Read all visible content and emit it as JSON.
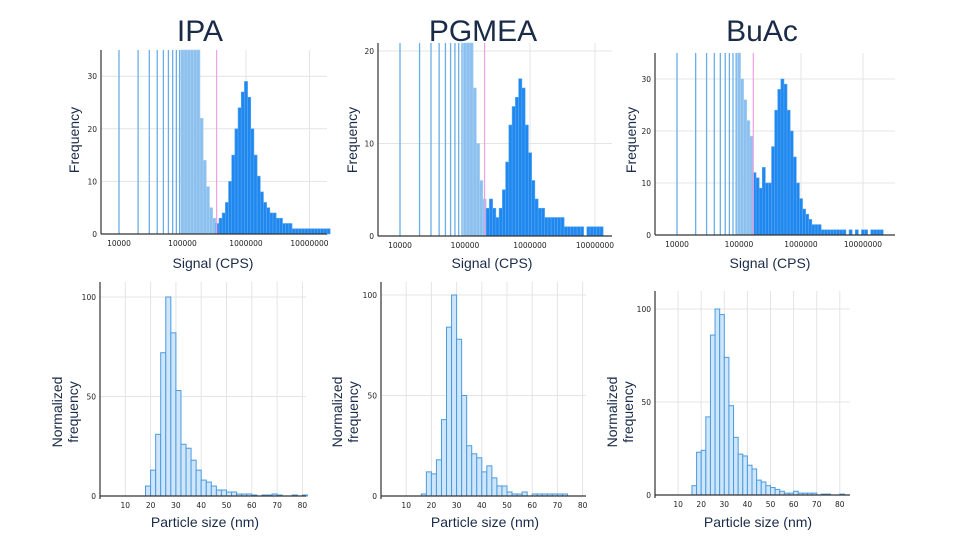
{
  "colors": {
    "title": "#1a2b48",
    "signal_above": "#1e88f0",
    "signal_below": "#8cc0ee",
    "threshold": "#f0a0e0",
    "size_fill": "#cfe6fa",
    "size_stroke": "#4a9be0",
    "grid": "#e4e4e4"
  },
  "chart_data": [
    {
      "type": "bar",
      "title": "IPA",
      "xlabel": "Signal (CPS)",
      "ylabel": "Frequency",
      "xscale": "log",
      "xlim": [
        5000,
        20000000
      ],
      "ylim": [
        0,
        35
      ],
      "grid": true,
      "xticks": [
        "10000",
        "100000",
        "1000000",
        "10000000"
      ],
      "yticks": [
        "0",
        "10",
        "20",
        "30"
      ],
      "threshold": 345000,
      "spikes": [
        10000,
        20000,
        30000,
        40000,
        50000,
        60000,
        70000,
        80000,
        90000
      ],
      "log10_bin_centers_start": 5.0,
      "log10_bin_step": 0.05,
      "values": [
        40,
        40,
        40,
        40,
        40,
        35,
        22,
        14,
        9,
        5,
        3,
        2,
        3,
        4,
        6,
        10,
        15,
        20,
        24,
        27,
        29,
        26,
        20,
        15,
        11,
        8,
        6,
        5,
        4,
        4,
        3,
        3,
        2,
        2,
        2,
        1,
        1,
        1,
        1,
        1,
        1,
        1,
        1,
        1,
        1,
        1,
        1
      ]
    },
    {
      "type": "bar",
      "title": "PGMEA",
      "xlabel": "Signal (CPS)",
      "ylabel": "Frequency",
      "xscale": "log",
      "xlim": [
        5000,
        20000000
      ],
      "ylim": [
        0,
        21
      ],
      "grid": true,
      "xticks": [
        "10000",
        "100000",
        "1000000",
        "10000000"
      ],
      "yticks": [
        "0",
        "10",
        "20"
      ],
      "threshold": 200000,
      "spikes": [
        10000,
        20000,
        30000,
        40000,
        50000,
        60000,
        70000,
        80000,
        90000
      ],
      "log10_bin_centers_start": 5.0,
      "log10_bin_step": 0.05,
      "values": [
        25,
        25,
        25,
        16,
        10,
        6,
        4,
        3,
        4,
        3,
        2,
        3,
        5,
        8,
        12,
        14,
        15,
        17,
        16,
        12,
        9,
        6,
        4,
        3,
        3,
        2,
        2,
        2,
        2,
        2,
        2,
        1,
        1,
        1,
        1,
        1,
        1,
        0,
        1,
        1,
        1,
        1,
        1
      ]
    },
    {
      "type": "bar",
      "title": "BuAc",
      "xlabel": "Signal (CPS)",
      "ylabel": "Frequency",
      "xscale": "log",
      "xlim": [
        5000,
        30000000
      ],
      "ylim": [
        0,
        35
      ],
      "grid": true,
      "xticks": [
        "10000",
        "100000",
        "1000000",
        "10000000"
      ],
      "yticks": [
        "0",
        "10",
        "20",
        "30"
      ],
      "threshold": 170000,
      "spikes": [
        10000,
        20000,
        30000,
        40000,
        50000,
        60000,
        70000,
        80000,
        90000
      ],
      "log10_bin_centers_start": 5.0,
      "log10_bin_step": 0.05,
      "values": [
        40,
        30,
        26,
        22,
        19,
        12,
        11,
        9,
        13,
        10,
        10,
        17,
        24,
        28,
        30,
        29,
        24,
        20,
        15,
        10,
        7,
        5,
        4,
        3,
        2,
        2,
        2,
        1,
        1,
        1,
        1,
        1,
        1,
        1,
        1,
        0,
        1,
        0,
        1,
        0,
        1,
        1,
        0,
        1,
        1,
        1,
        1
      ]
    },
    {
      "type": "bar",
      "title": "",
      "xlabel": "Particle size (nm)",
      "ylabel": [
        "Normalized",
        "frequency"
      ],
      "xlim": [
        0,
        82
      ],
      "ylim": [
        0,
        100
      ],
      "grid": true,
      "xticks": [
        "10",
        "20",
        "30",
        "40",
        "50",
        "60",
        "70",
        "80"
      ],
      "yticks": [
        "0",
        "50",
        "100"
      ],
      "bin_start": 18,
      "bin_width": 2,
      "values": [
        5,
        13,
        31,
        72,
        100,
        82,
        53,
        26,
        24,
        18,
        13,
        8,
        7,
        5,
        3,
        3,
        2,
        2,
        1,
        1,
        1,
        0.5,
        0,
        0.5,
        0.5,
        1,
        0.5,
        0,
        0,
        0.5,
        0,
        0.5
      ]
    },
    {
      "type": "bar",
      "title": "",
      "xlabel": "Particle size (nm)",
      "ylabel": [
        "Normalized",
        "frequency"
      ],
      "xlim": [
        0,
        82
      ],
      "ylim": [
        0,
        100
      ],
      "grid": true,
      "xticks": [
        "10",
        "20",
        "30",
        "40",
        "50",
        "60",
        "70",
        "80"
      ],
      "yticks": [
        "0",
        "50",
        "100"
      ],
      "bin_start": 16,
      "bin_width": 2,
      "values": [
        1,
        12,
        11,
        18,
        38,
        84,
        100,
        78,
        50,
        25,
        21,
        19,
        12,
        15,
        9,
        5,
        5,
        2,
        1,
        1,
        2,
        0,
        1,
        1,
        1,
        1,
        1,
        1,
        1
      ]
    },
    {
      "type": "bar",
      "title": "",
      "xlabel": "Particle size (nm)",
      "ylabel": [
        "Normalized",
        "frequency"
      ],
      "xlim": [
        0,
        84
      ],
      "ylim": [
        0,
        100
      ],
      "grid": true,
      "xticks": [
        "10",
        "20",
        "30",
        "40",
        "50",
        "60",
        "70",
        "80"
      ],
      "yticks": [
        "0",
        "50",
        "100"
      ],
      "bin_start": 16,
      "bin_width": 2,
      "values": [
        5,
        23,
        24,
        42,
        86,
        100,
        97,
        74,
        48,
        31,
        22,
        21,
        16,
        14,
        8,
        7,
        5,
        4,
        3,
        2,
        1,
        1,
        2,
        1,
        1,
        1,
        1,
        0,
        0.5,
        0.5,
        0,
        0,
        0.5
      ]
    }
  ]
}
